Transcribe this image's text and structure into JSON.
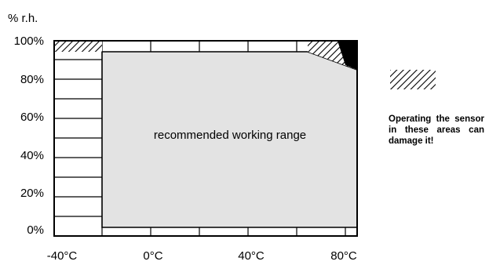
{
  "y_axis": {
    "unit_label": "% r.h.",
    "tick_labels": [
      "100%",
      "80%",
      "60%",
      "40%",
      "20%",
      "0%"
    ],
    "range": [
      0,
      100
    ]
  },
  "x_axis": {
    "tick_labels": [
      "-40°C",
      "0°C",
      "40°C",
      "80°C"
    ],
    "range": [
      -40,
      80
    ]
  },
  "regions": {
    "recommended": {
      "label": "recommended working range",
      "temperature_range": [
        -20,
        80
      ],
      "humidity_range": [
        0,
        100
      ],
      "corner_cut": {
        "from_temperature": 60,
        "to_humidity": 90
      }
    },
    "hazard_areas": [
      {
        "name": "cold-corner",
        "temperature_range": [
          -40,
          -20
        ],
        "humidity_range": [
          90,
          100
        ]
      },
      {
        "name": "hot-humid-corner",
        "temperature_range": [
          60,
          80
        ],
        "humidity_range": [
          90,
          100
        ]
      }
    ]
  },
  "legend": {
    "note": "Operating the sensor in these areas can damage it!"
  },
  "colors": {
    "recommended_fill": "#e3e3e3",
    "border": "#000000",
    "hatch": "#000000"
  }
}
